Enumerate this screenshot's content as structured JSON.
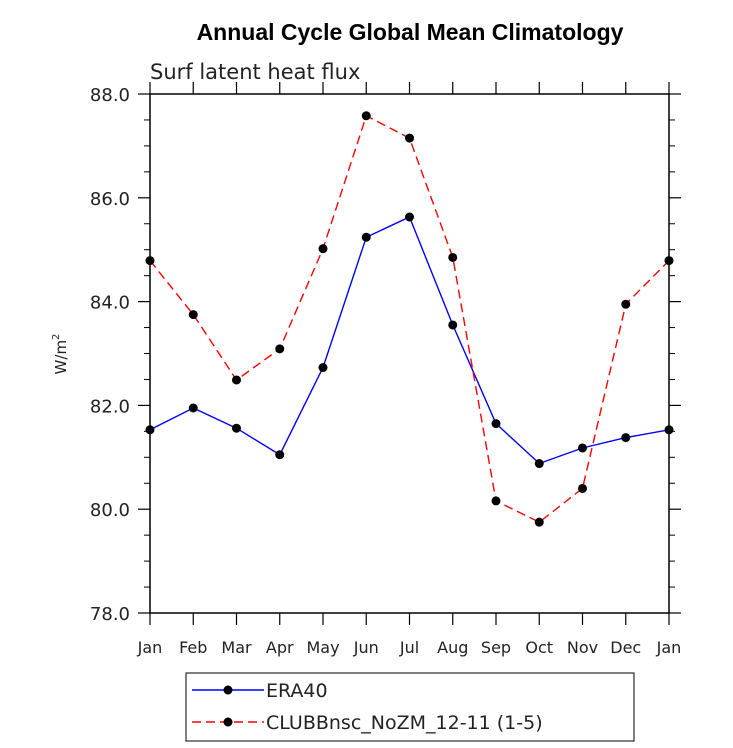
{
  "chart_data": {
    "type": "line",
    "title": "Annual Cycle Global Mean Climatology",
    "subtitle": "Surf latent heat flux",
    "ylabel": "W/m",
    "ylabel_sup": "2",
    "xlabel": "",
    "categories": [
      "Jan",
      "Feb",
      "Mar",
      "Apr",
      "May",
      "Jun",
      "Jul",
      "Aug",
      "Sep",
      "Oct",
      "Nov",
      "Dec",
      "Jan"
    ],
    "ylim": [
      78.0,
      88.0
    ],
    "yticks": [
      "78.0",
      "80.0",
      "82.0",
      "84.0",
      "86.0",
      "88.0"
    ],
    "ytick_values": [
      78,
      80,
      82,
      84,
      86,
      88
    ],
    "grid": false,
    "legend_position": "bottom",
    "series": [
      {
        "name": "ERA40",
        "color": "#0000ff",
        "dash": "solid",
        "values": [
          81.53,
          81.95,
          81.56,
          81.05,
          82.73,
          85.24,
          85.63,
          83.55,
          81.65,
          80.88,
          81.18,
          81.38,
          81.53
        ]
      },
      {
        "name": "CLUBBnsc_NoZM_12-11 (1-5)",
        "color": "#ff0000",
        "dash": "dashed",
        "values": [
          84.79,
          83.75,
          82.49,
          83.09,
          85.02,
          87.58,
          87.15,
          84.85,
          80.16,
          79.75,
          80.4,
          83.95,
          84.79
        ]
      }
    ]
  }
}
